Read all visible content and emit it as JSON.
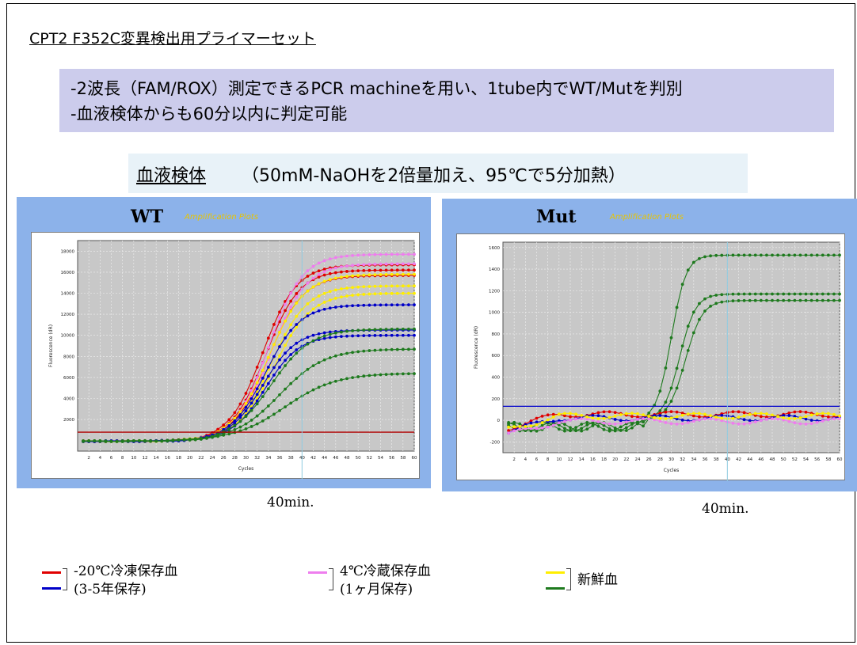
{
  "slide": {
    "title": "CPT2 F352C変異検出用プライマーセット",
    "summary": [
      "-2波長（FAM/ROX）測定できるPCR machineを用い、1tube内でWT/Mutを判別",
      "-血液検体からも60分以内に判定可能"
    ],
    "sample": {
      "label": "血液検体",
      "note": "（50mM-NaOHを2倍量加え、95℃で5分加熱）"
    },
    "time_marker": "40min."
  },
  "legend": [
    {
      "lines": [
        "-20℃冷凍保存血",
        "(3-5年保存)"
      ],
      "colors": [
        "#e00000",
        "#0000c8"
      ]
    },
    {
      "lines": [
        "4℃冷蔵保存血",
        "(1ヶ月保存)"
      ],
      "colors": [
        "#ee7eee"
      ]
    },
    {
      "lines": [
        "新鮮血"
      ],
      "colors": [
        "#ffee00",
        "#1e7a1e"
      ]
    }
  ],
  "chart_data": [
    {
      "type": "line",
      "title": "WT",
      "subtitle": "Amplification Plots",
      "xlabel": "Cycles",
      "ylabel": "Fluorescence (dR)",
      "xlim": [
        0,
        60
      ],
      "ylim": [
        -1000,
        19000
      ],
      "xticks": [
        2,
        4,
        6,
        8,
        10,
        12,
        14,
        16,
        18,
        20,
        22,
        24,
        26,
        28,
        30,
        32,
        34,
        36,
        38,
        40,
        42,
        44,
        46,
        48,
        50,
        52,
        54,
        56,
        58,
        60
      ],
      "yticks": [
        2000,
        4000,
        6000,
        8000,
        10000,
        12000,
        14000,
        16000,
        18000
      ],
      "threshold": 800,
      "grid": true,
      "series": [
        {
          "color": "#e00000",
          "plateau": 16700,
          "midpoint": 33.0,
          "slope": 3.0
        },
        {
          "color": "#e00000",
          "plateau": 16200,
          "midpoint": 33.5,
          "slope": 3.0
        },
        {
          "color": "#e00000",
          "plateau": 15700,
          "midpoint": 34.0,
          "slope": 3.1
        },
        {
          "color": "#ee7eee",
          "plateau": 17700,
          "midpoint": 34.0,
          "slope": 3.0
        },
        {
          "color": "#ee7eee",
          "plateau": 16800,
          "midpoint": 34.5,
          "slope": 3.1
        },
        {
          "color": "#ffee00",
          "plateau": 15800,
          "midpoint": 34.0,
          "slope": 3.2
        },
        {
          "color": "#ffee00",
          "plateau": 14700,
          "midpoint": 34.5,
          "slope": 3.2
        },
        {
          "color": "#ffee00",
          "plateau": 14000,
          "midpoint": 35.0,
          "slope": 3.3
        },
        {
          "color": "#0000c8",
          "plateau": 12900,
          "midpoint": 33.5,
          "slope": 3.1
        },
        {
          "color": "#0000c8",
          "plateau": 10500,
          "midpoint": 33.0,
          "slope": 3.0
        },
        {
          "color": "#0000c8",
          "plateau": 10000,
          "midpoint": 33.5,
          "slope": 3.0
        },
        {
          "color": "#1e7a1e",
          "plateau": 10600,
          "midpoint": 34.5,
          "slope": 3.5
        },
        {
          "color": "#1e7a1e",
          "plateau": 8700,
          "midpoint": 36.0,
          "slope": 4.0
        },
        {
          "color": "#1e7a1e",
          "plateau": 6400,
          "midpoint": 37.0,
          "slope": 4.5
        }
      ]
    },
    {
      "type": "line",
      "title": "Mut",
      "subtitle": "Amplification Plots",
      "xlabel": "Cycles",
      "ylabel": "Fluorescence (dR)",
      "xlim": [
        0,
        60
      ],
      "ylim": [
        -300,
        1650
      ],
      "xticks": [
        2,
        4,
        6,
        8,
        10,
        12,
        14,
        16,
        18,
        20,
        22,
        24,
        26,
        28,
        30,
        32,
        34,
        36,
        38,
        40,
        42,
        44,
        46,
        48,
        50,
        52,
        54,
        56,
        58,
        60
      ],
      "yticks": [
        -200,
        0,
        200,
        400,
        600,
        800,
        1000,
        1200,
        1400,
        1600
      ],
      "threshold": 130,
      "grid": true,
      "series": [
        {
          "color": "#1e7a1e",
          "plateau": 1530,
          "midpoint": 30.0,
          "slope": 1.3
        },
        {
          "color": "#1e7a1e",
          "plateau": 1170,
          "midpoint": 31.5,
          "slope": 1.4
        },
        {
          "color": "#1e7a1e",
          "plateau": 1110,
          "midpoint": 32.5,
          "slope": 1.5
        },
        {
          "color": "#e00000",
          "level": 55
        },
        {
          "color": "#0000c8",
          "level": 20
        },
        {
          "color": "#ee7eee",
          "level": -10
        },
        {
          "color": "#ffee00",
          "level": 40
        }
      ]
    }
  ]
}
